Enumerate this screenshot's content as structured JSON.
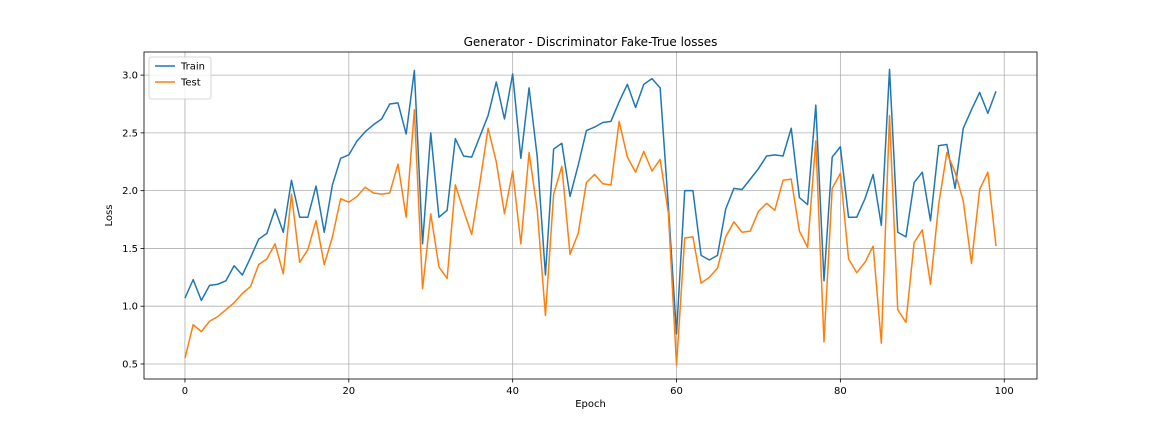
{
  "chart_data": {
    "type": "line",
    "title": "Generator - Discriminator Fake-True losses",
    "xlabel": "Epoch",
    "ylabel": "Loss",
    "xlim": [
      -5,
      104
    ],
    "ylim": [
      0.37,
      3.2
    ],
    "xticks": [
      0,
      20,
      40,
      60,
      80,
      100
    ],
    "yticks": [
      0.5,
      1.0,
      1.5,
      2.0,
      2.5,
      3.0
    ],
    "xtick_labels": [
      "0",
      "20",
      "40",
      "60",
      "80",
      "100"
    ],
    "ytick_labels": [
      "0.5",
      "1.0",
      "1.5",
      "2.0",
      "2.5",
      "3.0"
    ],
    "grid": true,
    "legend_position": "top-left",
    "x": [
      0,
      1,
      2,
      3,
      4,
      5,
      6,
      7,
      8,
      9,
      10,
      11,
      12,
      13,
      14,
      15,
      16,
      17,
      18,
      19,
      20,
      21,
      22,
      23,
      24,
      25,
      26,
      27,
      28,
      29,
      30,
      31,
      32,
      33,
      34,
      35,
      36,
      37,
      38,
      39,
      40,
      41,
      42,
      43,
      44,
      45,
      46,
      47,
      48,
      49,
      50,
      51,
      52,
      53,
      54,
      55,
      56,
      57,
      58,
      59,
      60,
      61,
      62,
      63,
      64,
      65,
      66,
      67,
      68,
      69,
      70,
      71,
      72,
      73,
      74,
      75,
      76,
      77,
      78,
      79,
      80,
      81,
      82,
      83,
      84,
      85,
      86,
      87,
      88,
      89,
      90,
      91,
      92,
      93,
      94,
      95,
      96,
      97,
      98,
      99
    ],
    "series": [
      {
        "name": "Train",
        "color": "#1f77b4",
        "values": [
          1.07,
          1.23,
          1.05,
          1.18,
          1.19,
          1.22,
          1.35,
          1.27,
          1.42,
          1.58,
          1.63,
          1.84,
          1.64,
          2.09,
          1.77,
          1.77,
          2.04,
          1.64,
          2.05,
          2.28,
          2.31,
          2.43,
          2.51,
          2.57,
          2.62,
          2.75,
          2.76,
          2.49,
          3.04,
          1.54,
          2.5,
          1.77,
          1.83,
          2.45,
          2.3,
          2.29,
          2.47,
          2.65,
          2.94,
          2.62,
          3.01,
          2.28,
          2.89,
          2.29,
          1.27,
          2.36,
          2.41,
          1.95,
          2.22,
          2.52,
          2.55,
          2.59,
          2.6,
          2.77,
          2.92,
          2.72,
          2.92,
          2.97,
          2.89,
          1.87,
          0.76,
          2.0,
          2.0,
          1.44,
          1.4,
          1.44,
          1.84,
          2.02,
          2.01,
          2.1,
          2.19,
          2.3,
          2.31,
          2.3,
          2.54,
          1.94,
          1.88,
          2.74,
          1.22,
          2.29,
          2.38,
          1.77,
          1.77,
          1.93,
          2.14,
          1.7,
          3.05,
          1.64,
          1.6,
          2.07,
          2.16,
          1.74,
          2.39,
          2.4,
          2.02,
          2.54,
          2.7,
          2.85,
          2.67,
          2.86
        ]
      },
      {
        "name": "Test",
        "color": "#ff7f0e",
        "values": [
          0.55,
          0.84,
          0.78,
          0.87,
          0.91,
          0.97,
          1.03,
          1.11,
          1.17,
          1.36,
          1.41,
          1.54,
          1.28,
          1.97,
          1.38,
          1.49,
          1.74,
          1.36,
          1.6,
          1.93,
          1.9,
          1.95,
          2.03,
          1.98,
          1.97,
          1.98,
          2.23,
          1.77,
          2.7,
          1.15,
          1.8,
          1.34,
          1.24,
          2.05,
          1.83,
          1.62,
          2.07,
          2.54,
          2.25,
          1.8,
          2.17,
          1.54,
          2.33,
          1.83,
          0.92,
          1.97,
          2.21,
          1.45,
          1.63,
          2.07,
          2.14,
          2.06,
          2.05,
          2.6,
          2.29,
          2.16,
          2.34,
          2.17,
          2.27,
          1.81,
          0.49,
          1.59,
          1.6,
          1.2,
          1.25,
          1.33,
          1.6,
          1.73,
          1.64,
          1.65,
          1.82,
          1.89,
          1.83,
          2.09,
          2.1,
          1.65,
          1.51,
          2.43,
          0.69,
          2.02,
          2.15,
          1.41,
          1.29,
          1.38,
          1.52,
          0.68,
          2.65,
          0.97,
          0.86,
          1.55,
          1.66,
          1.19,
          1.88,
          2.33,
          2.16,
          1.91,
          1.37,
          2.01,
          2.16,
          1.52
        ]
      }
    ]
  }
}
